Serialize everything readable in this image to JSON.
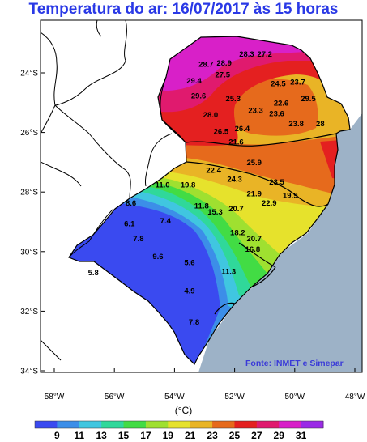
{
  "title": "Temperatura do ar: 16/07/2017 às 15 horas",
  "source": "Fonte: INMET e Simepar",
  "unit": "(°C)",
  "lat_ticks": [
    "24°S",
    "26°S",
    "28°S",
    "30°S",
    "32°S",
    "34°S"
  ],
  "lon_ticks": [
    "58°W",
    "56°W",
    "54°W",
    "52°W",
    "50°W",
    "48°W"
  ],
  "colorbar": {
    "colors": [
      "#3a4af0",
      "#3c8ee8",
      "#40c6e0",
      "#30d89a",
      "#42dc44",
      "#9fe030",
      "#e6e22c",
      "#e9b426",
      "#e66a1c",
      "#e42020",
      "#e01a6e",
      "#d820c8",
      "#9a2ae6"
    ],
    "labels": [
      "9",
      "11",
      "13",
      "15",
      "17",
      "19",
      "21",
      "23",
      "25",
      "27",
      "29",
      "31"
    ]
  },
  "stations": [
    {
      "v": "28.3",
      "x": -51.6,
      "y": -23.45
    },
    {
      "v": "27.2",
      "x": -51.0,
      "y": -23.45
    },
    {
      "v": "28.7",
      "x": -52.95,
      "y": -23.8
    },
    {
      "v": "28.9",
      "x": -52.35,
      "y": -23.75
    },
    {
      "v": "27.5",
      "x": -52.4,
      "y": -24.15
    },
    {
      "v": "29.4",
      "x": -53.35,
      "y": -24.35
    },
    {
      "v": "24.5",
      "x": -50.55,
      "y": -24.45
    },
    {
      "v": "23.7",
      "x": -49.9,
      "y": -24.4
    },
    {
      "v": "29.6",
      "x": -53.2,
      "y": -24.85
    },
    {
      "v": "25.3",
      "x": -52.05,
      "y": -24.95
    },
    {
      "v": "22.6",
      "x": -50.45,
      "y": -25.1
    },
    {
      "v": "29.5",
      "x": -49.55,
      "y": -24.95
    },
    {
      "v": "23.3",
      "x": -51.3,
      "y": -25.35
    },
    {
      "v": "23.6",
      "x": -50.6,
      "y": -25.45
    },
    {
      "v": "28.0",
      "x": -52.8,
      "y": -25.5
    },
    {
      "v": "23.8",
      "x": -49.95,
      "y": -25.8
    },
    {
      "v": "28",
      "x": -49.15,
      "y": -25.8
    },
    {
      "v": "26.4",
      "x": -51.75,
      "y": -25.95
    },
    {
      "v": "26.5",
      "x": -52.45,
      "y": -26.05
    },
    {
      "v": "21.6",
      "x": -51.95,
      "y": -26.4
    },
    {
      "v": "25.9",
      "x": -51.35,
      "y": -27.1
    },
    {
      "v": "22.4",
      "x": -52.7,
      "y": -27.35
    },
    {
      "v": "24.3",
      "x": -52.0,
      "y": -27.65
    },
    {
      "v": "11.0",
      "x": -54.4,
      "y": -27.85
    },
    {
      "v": "19.8",
      "x": -53.55,
      "y": -27.85
    },
    {
      "v": "23.5",
      "x": -50.6,
      "y": -27.75
    },
    {
      "v": "21.9",
      "x": -51.35,
      "y": -28.15
    },
    {
      "v": "19.9",
      "x": -50.15,
      "y": -28.2
    },
    {
      "v": "8.6",
      "x": -55.45,
      "y": -28.45
    },
    {
      "v": "22.9",
      "x": -50.85,
      "y": -28.45
    },
    {
      "v": "11.8",
      "x": -53.1,
      "y": -28.55
    },
    {
      "v": "20.7",
      "x": -51.95,
      "y": -28.65
    },
    {
      "v": "15.3",
      "x": -52.65,
      "y": -28.75
    },
    {
      "v": "7.4",
      "x": -54.3,
      "y": -29.05
    },
    {
      "v": "6.1",
      "x": -55.5,
      "y": -29.15
    },
    {
      "v": "18.2",
      "x": -51.9,
      "y": -29.45
    },
    {
      "v": "7.8",
      "x": -55.2,
      "y": -29.65
    },
    {
      "v": "20.7",
      "x": -51.35,
      "y": -29.65
    },
    {
      "v": "16.8",
      "x": -51.4,
      "y": -30.0
    },
    {
      "v": "9.6",
      "x": -54.55,
      "y": -30.25
    },
    {
      "v": "5.6",
      "x": -53.5,
      "y": -30.45
    },
    {
      "v": "5.8",
      "x": -56.7,
      "y": -30.8
    },
    {
      "v": "11.3",
      "x": -52.2,
      "y": -30.75
    },
    {
      "v": "4.9",
      "x": -53.5,
      "y": -31.4
    },
    {
      "v": "7.8",
      "x": -53.35,
      "y": -32.45
    }
  ]
}
